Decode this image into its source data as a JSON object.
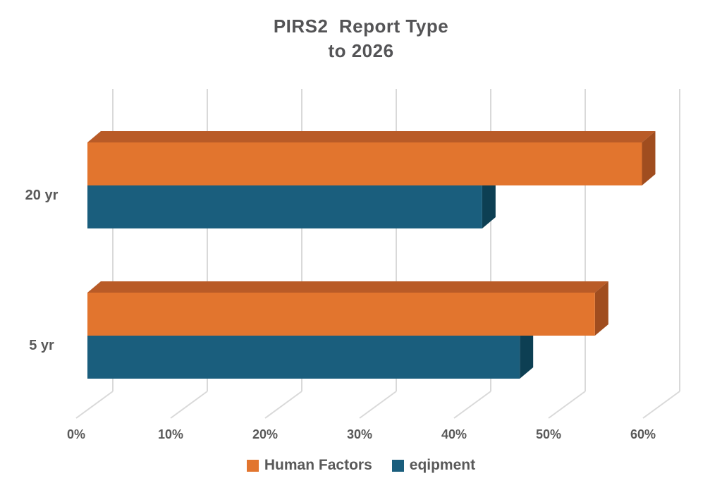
{
  "chart": {
    "title_lines": [
      "PIRS2  Report Type",
      "to 2026"
    ]
  },
  "chart_data": {
    "type": "bar",
    "orientation": "horizontal",
    "style": "3d-oblique",
    "title": "PIRS2 Report Type to 2026",
    "categories": [
      "20 yr",
      "5 yr"
    ],
    "series": [
      {
        "name": "Human Factors",
        "values": [
          59,
          54
        ],
        "color": "#E2752E",
        "color_top": "#B95B27",
        "color_side": "#A04D1F"
      },
      {
        "name": "eqipment",
        "values": [
          42,
          46
        ],
        "color": "#1A5E7D",
        "color_top": "#164F68",
        "color_side": "#0D3F53"
      }
    ],
    "x_ticks": [
      "0%",
      "10%",
      "20%",
      "30%",
      "40%",
      "50%",
      "60%"
    ],
    "xlim": [
      0,
      60
    ],
    "xlabel": "",
    "ylabel": "",
    "grid": true,
    "legend_position": "bottom",
    "gridline_color": "#D9D9D9",
    "text_color": "#595959",
    "background": "#FFFFFF"
  }
}
